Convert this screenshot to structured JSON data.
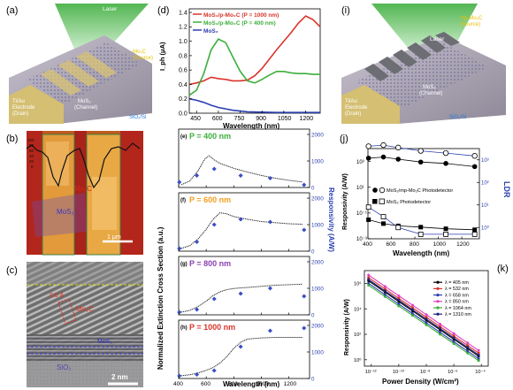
{
  "panels": {
    "a": {
      "label": "(a)",
      "laser": "Laser",
      "source": [
        "Mo₂C",
        "(Source)"
      ],
      "drain": [
        "Ti/Au",
        "Electrode",
        "(Drain)"
      ],
      "channel": [
        "MoS₂",
        "(Channel)"
      ],
      "substrate": "SiO₂/Si"
    },
    "b": {
      "label": "(b)",
      "material1": "Mo₂C",
      "material2": "MoS₂",
      "scalebar": "1 μm",
      "profile_ticks": [
        "100",
        "80",
        "60",
        "40",
        "20",
        "0"
      ]
    },
    "c": {
      "label": "(c)",
      "spacing": "0.8 Å",
      "material1": "Mo₂C",
      "material2": "MoS₂",
      "substrate": "SiO₂",
      "scalebar": "2 nm"
    },
    "i": {
      "label": "(i)",
      "laser": "Laser",
      "source": [
        "mp-Mo₂C",
        "(Source)"
      ],
      "drain": [
        "Ti/Au",
        "Electrode",
        "(Drain)"
      ],
      "channel": [
        "MoS₂",
        "(Channel)"
      ],
      "substrate": "SiO₂/Si"
    }
  },
  "colors": {
    "red": "#d9342b",
    "green": "#3cae3c",
    "blue": "#2b3fb0",
    "laser": "#5cc25c",
    "orange": "#f0a020"
  },
  "chart_data": [
    {
      "panel": "d",
      "label": "(d)",
      "type": "line",
      "xlabel": "Wavelength (nm)",
      "ylabel": "I_ph (μA)",
      "xticks": [
        "450",
        "600",
        "750",
        "900",
        "1050",
        "1200"
      ],
      "yticks": [
        "0.0",
        "0.2",
        "0.4",
        "0.6",
        "0.8",
        "1.0",
        "1.2",
        "1.4"
      ],
      "xlim": [
        400,
        1300
      ],
      "ylim": [
        0,
        1.45
      ],
      "series": [
        {
          "name": "MoS₂/p-Mo₂C (P = 1000 nm)",
          "color": "#d9342b",
          "x": [
            400,
            450,
            500,
            550,
            600,
            650,
            700,
            750,
            800,
            850,
            900,
            950,
            1000,
            1050,
            1100,
            1150,
            1200,
            1250,
            1300
          ],
          "y": [
            0.4,
            0.42,
            0.45,
            0.5,
            0.48,
            0.47,
            0.45,
            0.45,
            0.46,
            0.52,
            0.62,
            0.75,
            0.88,
            1.0,
            1.12,
            1.25,
            1.35,
            1.3,
            1.2
          ]
        },
        {
          "name": "MoS₂/p-Mo₂C (P = 400 nm)",
          "color": "#3cae3c",
          "x": [
            400,
            450,
            500,
            550,
            600,
            650,
            700,
            750,
            800,
            850,
            900,
            950,
            1000,
            1050,
            1100,
            1150,
            1200,
            1250,
            1300
          ],
          "y": [
            0.25,
            0.32,
            0.55,
            0.88,
            1.03,
            0.98,
            0.78,
            0.58,
            0.45,
            0.42,
            0.47,
            0.53,
            0.58,
            0.58,
            0.56,
            0.55,
            0.55,
            0.54,
            0.54
          ]
        },
        {
          "name": "MoS₂",
          "color": "#2b3fb0",
          "x": [
            400,
            450,
            500,
            550,
            600,
            650,
            700,
            800,
            900,
            1000,
            1100,
            1200,
            1300
          ],
          "y": [
            0.2,
            0.18,
            0.15,
            0.11,
            0.08,
            0.06,
            0.04,
            0.02,
            0.015,
            0.01,
            0.01,
            0.01,
            0.01
          ]
        }
      ]
    },
    {
      "panel": "e-h",
      "type": "scatter",
      "ylabel_left": "Normalized Extinction Cross Section (a.u.)",
      "ylabel_right": "Responsivity (A/W)",
      "xlabel": "Wavelength (nm)",
      "xticks": [
        "400",
        "600",
        "800",
        "1000",
        "1200"
      ],
      "xlim": [
        400,
        1350
      ],
      "right_ticks": [
        "0",
        "1000",
        "2000"
      ],
      "subpanels": [
        {
          "label": "(e)",
          "title": "P = 400 nm",
          "color": "#3cae3c",
          "curve": {
            "x": [
              420,
              480,
              540,
              590,
              620,
              660,
              700,
              800,
              900,
              1000,
              1100,
              1200,
              1300
            ],
            "y": [
              0.05,
              0.12,
              0.3,
              0.52,
              0.58,
              0.5,
              0.44,
              0.35,
              0.28,
              0.22,
              0.17,
              0.13,
              0.1
            ]
          },
          "points": {
            "x": [
              405,
              532,
              658,
              850,
              1064,
              1310
            ],
            "y": [
              200,
              450,
              700,
              450,
              350,
              100
            ]
          }
        },
        {
          "label": "(f)",
          "title": "P = 600 nm",
          "color": "#f0a020",
          "curve": {
            "x": [
              420,
              480,
              540,
              600,
              650,
              700,
              750,
              800,
              900,
              1000,
              1100,
              1200,
              1300
            ],
            "y": [
              0.05,
              0.1,
              0.22,
              0.4,
              0.58,
              0.7,
              0.68,
              0.63,
              0.58,
              0.54,
              0.52,
              0.5,
              0.49
            ]
          },
          "points": {
            "x": [
              405,
              532,
              658,
              850,
              1064,
              1310
            ],
            "y": [
              100,
              350,
              1000,
              1200,
              1100,
              800
            ]
          }
        },
        {
          "label": "(g)",
          "title": "P = 800 nm",
          "color": "#8a3fb0",
          "curve": {
            "x": [
              420,
              480,
              540,
              600,
              650,
              700,
              750,
              800,
              900,
              1000,
              1100,
              1200,
              1300
            ],
            "y": [
              0.05,
              0.08,
              0.15,
              0.25,
              0.35,
              0.42,
              0.46,
              0.48,
              0.5,
              0.52,
              0.54,
              0.55,
              0.56
            ]
          },
          "points": {
            "x": [
              405,
              532,
              658,
              850,
              1064,
              1310
            ],
            "y": [
              100,
              200,
              600,
              800,
              1000,
              700
            ]
          }
        },
        {
          "label": "(h)",
          "title": "P = 1000 nm",
          "color": "#d9342b",
          "curve": {
            "x": [
              420,
              480,
              540,
              600,
              650,
              700,
              750,
              800,
              850,
              900,
              1000,
              1100,
              1200,
              1300
            ],
            "y": [
              0.05,
              0.07,
              0.1,
              0.15,
              0.2,
              0.28,
              0.4,
              0.55,
              0.66,
              0.72,
              0.74,
              0.75,
              0.75,
              0.75
            ]
          },
          "points": {
            "x": [
              405,
              532,
              658,
              850,
              1064,
              1310
            ],
            "y": [
              100,
              150,
              300,
              1200,
              1800,
              1900
            ]
          }
        }
      ]
    },
    {
      "panel": "j",
      "label": "(j)",
      "type": "scatter",
      "xlabel": "Wavelength (nm)",
      "ylabel": "Responsivity (A/W)",
      "ylabel_right": "LDR",
      "xticks": [
        "400",
        "600",
        "800",
        "1000",
        "1200"
      ],
      "yticks": [
        "10³",
        "10¹",
        "10⁻¹",
        "10⁻³"
      ],
      "right_ticks": [
        "10³",
        "10²",
        "10¹",
        "10⁰"
      ],
      "legend": [
        "MoS₂/mp-Mo₂C Photodetector",
        "MoS₂ Photodetector"
      ],
      "x": [
        405,
        532,
        658,
        850,
        1064,
        1310
      ],
      "series": [
        {
          "name": "MoS₂/mp-Mo₂C Photodetector responsivity",
          "marker": "filled-circle",
          "y": [
            1800,
            2200,
            1500,
            900,
            700,
            400
          ]
        },
        {
          "name": "MoS₂/mp-Mo₂C Photodetector LDR",
          "marker": "open-circle",
          "y": [
            4000,
            4500,
            3500,
            2500,
            2000,
            1500
          ]
        },
        {
          "name": "MoS₂ Photodetector responsivity",
          "marker": "filled-square",
          "y": [
            0.03,
            0.015,
            0.01,
            0.008,
            0.006,
            0.005
          ]
        },
        {
          "name": "MoS₂ Photodetector LDR",
          "marker": "open-square",
          "y": [
            8,
            3,
            1,
            0.5,
            0.5,
            0.5
          ]
        }
      ]
    },
    {
      "panel": "k",
      "label": "(k)",
      "type": "line",
      "xlabel": "Power Density (W/cm²)",
      "ylabel": "Responsivity (A/W)",
      "xticks": [
        "10⁻¹²",
        "10⁻¹⁰",
        "10⁻⁸",
        "10⁻⁶",
        "10⁻⁴"
      ],
      "yticks": [
        "10⁶",
        "10⁴",
        "10²",
        "10⁰"
      ],
      "series": [
        {
          "name": "λ = 405 nm",
          "color": "#000000"
        },
        {
          "name": "λ = 532 nm",
          "color": "#d9342b"
        },
        {
          "name": "λ = 658 nm",
          "color": "#2b3fb0"
        },
        {
          "name": "λ = 850 nm",
          "color": "#e040c0"
        },
        {
          "name": "λ = 1064 nm",
          "color": "#3cae3c"
        },
        {
          "name": "λ = 1310 nm",
          "color": "#20207a"
        }
      ]
    }
  ]
}
